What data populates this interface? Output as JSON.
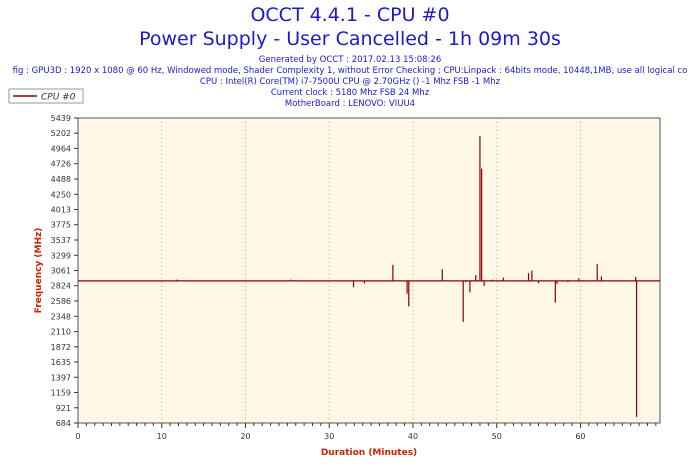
{
  "title": "OCCT 4.4.1 - CPU #0",
  "subtitle": "Power Supply - User Cancelled - 1h 09m 30s",
  "info_lines": [
    "Generated by OCCT : 2017.02.13 15:08:26",
    "fig : GPU3D : 1920 x 1080 @ 60 Hz, Windowed mode, Shader Complexity 1, without Error Checking ; CPU:Linpack : 64bits mode, 10448,1MB, use all logical co",
    "CPU : Intel(R) Core(TM) i7-7500U CPU @ 2.70GHz () -1 Mhz FSB -1 Mhz",
    "Current clock : 5180 Mhz FSB 24 Mhz",
    "MotherBoard : LENOVO: VIUU4"
  ],
  "colors": {
    "series": "#8b0000",
    "axis_label": "#cc2200",
    "plot_bg": "#fff8e6",
    "grid": "#c8a868"
  },
  "chart_data": {
    "type": "line",
    "title": "OCCT 4.4.1 - CPU #0",
    "xlabel": "Duration (Minutes)",
    "ylabel": "Frequency (MHz)",
    "xlim": [
      0,
      69.5
    ],
    "ylim": [
      684,
      5439
    ],
    "xticks": [
      0,
      10,
      20,
      30,
      40,
      50,
      60
    ],
    "yticks": [
      684,
      921,
      1159,
      1397,
      1635,
      1872,
      2110,
      2348,
      2586,
      2824,
      3061,
      3299,
      3537,
      3775,
      4013,
      4250,
      4488,
      4726,
      4964,
      5202,
      5439
    ],
    "legend": {
      "position": "top-left"
    },
    "grid": true,
    "series": [
      {
        "name": "CPU #0",
        "baseline": 2900,
        "spikes": [
          [
            11.8,
            2920
          ],
          [
            25.4,
            2920
          ],
          [
            32.9,
            2800
          ],
          [
            34.2,
            2860
          ],
          [
            37.6,
            3150
          ],
          [
            39.3,
            2700
          ],
          [
            39.5,
            2500
          ],
          [
            43.5,
            3080
          ],
          [
            46.0,
            2260
          ],
          [
            46.3,
            2880
          ],
          [
            46.8,
            2720
          ],
          [
            47.5,
            2990
          ],
          [
            48.0,
            5160
          ],
          [
            48.2,
            4650
          ],
          [
            48.5,
            2820
          ],
          [
            49.5,
            2920
          ],
          [
            50.8,
            2950
          ],
          [
            53.8,
            3020
          ],
          [
            54.2,
            3060
          ],
          [
            55.0,
            2860
          ],
          [
            57.0,
            2560
          ],
          [
            57.2,
            2850
          ],
          [
            58.5,
            2880
          ],
          [
            59.8,
            2940
          ],
          [
            62.0,
            3160
          ],
          [
            62.5,
            2970
          ],
          [
            66.6,
            2960
          ],
          [
            66.7,
            780
          ]
        ]
      }
    ]
  }
}
